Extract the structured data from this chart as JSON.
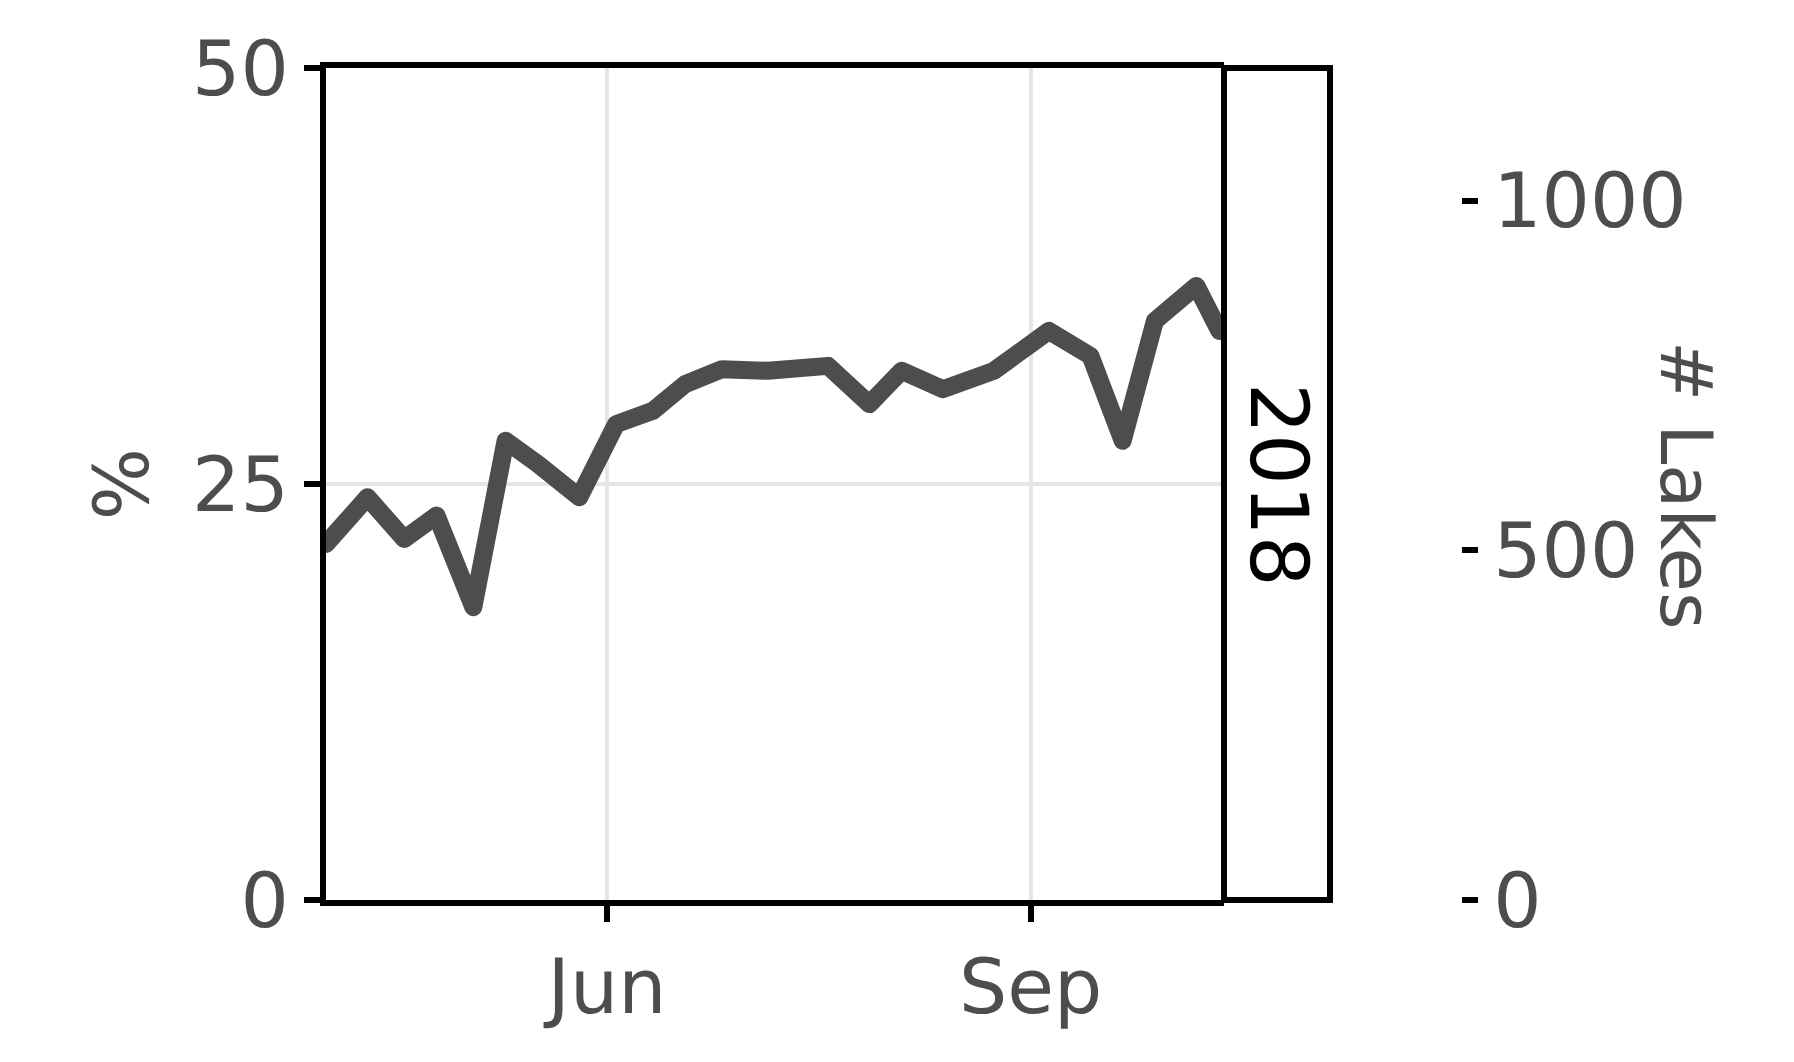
{
  "chart_data": {
    "type": "line",
    "ylabel": "%",
    "y2label": "# Lakes",
    "annotations": [
      "2018"
    ],
    "x": [
      "2018-04-01",
      "2018-04-10",
      "2018-04-18",
      "2018-04-25",
      "2018-05-03",
      "2018-05-10",
      "2018-05-17",
      "2018-05-26",
      "2018-06-03",
      "2018-06-11",
      "2018-06-18",
      "2018-06-26",
      "2018-07-06",
      "2018-07-19",
      "2018-07-28",
      "2018-08-04",
      "2018-08-13",
      "2018-08-24",
      "2018-09-05",
      "2018-09-14",
      "2018-09-21",
      "2018-09-28",
      "2018-10-07",
      "2018-10-12"
    ],
    "series": [
      {
        "color": "#4d4d4d",
        "values": [
          21.4,
          24.2,
          21.7,
          23.1,
          17.6,
          27.6,
          26.2,
          24.2,
          28.6,
          29.4,
          31.0,
          31.9,
          31.8,
          32.1,
          29.8,
          31.8,
          30.7,
          31.8,
          34.2,
          32.7,
          27.6,
          34.8,
          36.9,
          34.2
        ]
      }
    ],
    "xlim": [
      "2018-04-01",
      "2018-10-13"
    ],
    "xticks": [
      {
        "value": "2018-06-01",
        "label": "Jun"
      },
      {
        "value": "2018-09-01",
        "label": "Sep"
      }
    ],
    "ylim": [
      0,
      50
    ],
    "yticks": [
      0,
      25,
      50
    ],
    "y2lim": [
      0,
      1190
    ],
    "y2ticks": [
      0,
      500,
      1000
    ],
    "grid": true,
    "line_style": "solid"
  }
}
